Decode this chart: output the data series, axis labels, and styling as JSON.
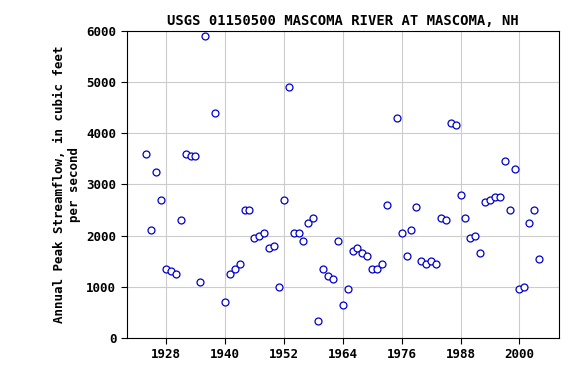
{
  "title": "USGS 01150500 MASCOMA RIVER AT MASCOMA, NH",
  "ylabel_line1": "Annual Peak Streamflow, in cubic feet",
  "ylabel_line2": "per second",
  "data": [
    [
      1924,
      3600
    ],
    [
      1925,
      2100
    ],
    [
      1926,
      3250
    ],
    [
      1927,
      2700
    ],
    [
      1928,
      1350
    ],
    [
      1929,
      1300
    ],
    [
      1930,
      1250
    ],
    [
      1931,
      2300
    ],
    [
      1932,
      3600
    ],
    [
      1933,
      3550
    ],
    [
      1934,
      3550
    ],
    [
      1935,
      1100
    ],
    [
      1936,
      5900
    ],
    [
      1938,
      4400
    ],
    [
      1940,
      700
    ],
    [
      1941,
      1250
    ],
    [
      1942,
      1350
    ],
    [
      1943,
      1450
    ],
    [
      1944,
      2500
    ],
    [
      1945,
      2500
    ],
    [
      1946,
      1950
    ],
    [
      1947,
      2000
    ],
    [
      1948,
      2050
    ],
    [
      1949,
      1750
    ],
    [
      1950,
      1800
    ],
    [
      1951,
      1000
    ],
    [
      1952,
      2700
    ],
    [
      1953,
      4900
    ],
    [
      1954,
      2050
    ],
    [
      1955,
      2050
    ],
    [
      1956,
      1900
    ],
    [
      1957,
      2250
    ],
    [
      1958,
      2350
    ],
    [
      1959,
      330
    ],
    [
      1960,
      1350
    ],
    [
      1961,
      1200
    ],
    [
      1962,
      1150
    ],
    [
      1963,
      1900
    ],
    [
      1964,
      650
    ],
    [
      1965,
      960
    ],
    [
      1966,
      1700
    ],
    [
      1967,
      1750
    ],
    [
      1968,
      1650
    ],
    [
      1969,
      1600
    ],
    [
      1970,
      1350
    ],
    [
      1971,
      1350
    ],
    [
      1972,
      1450
    ],
    [
      1973,
      2600
    ],
    [
      1975,
      4300
    ],
    [
      1976,
      2050
    ],
    [
      1977,
      1600
    ],
    [
      1978,
      2100
    ],
    [
      1979,
      2550
    ],
    [
      1980,
      1500
    ],
    [
      1981,
      1450
    ],
    [
      1982,
      1500
    ],
    [
      1983,
      1450
    ],
    [
      1984,
      2350
    ],
    [
      1985,
      2300
    ],
    [
      1986,
      4200
    ],
    [
      1987,
      4150
    ],
    [
      1988,
      2800
    ],
    [
      1989,
      2350
    ],
    [
      1990,
      1950
    ],
    [
      1991,
      2000
    ],
    [
      1992,
      1650
    ],
    [
      1993,
      2650
    ],
    [
      1994,
      2700
    ],
    [
      1995,
      2750
    ],
    [
      1996,
      2750
    ],
    [
      1997,
      3450
    ],
    [
      1998,
      2500
    ],
    [
      1999,
      3300
    ],
    [
      2000,
      950
    ],
    [
      2001,
      1000
    ],
    [
      2002,
      2250
    ],
    [
      2003,
      2500
    ],
    [
      2004,
      1550
    ]
  ],
  "marker_color": "#0000cc",
  "marker_facecolor": "white",
  "marker_size": 5,
  "xlim": [
    1920,
    2008
  ],
  "ylim": [
    0,
    6000
  ],
  "xticks": [
    1928,
    1940,
    1952,
    1964,
    1976,
    1988,
    2000
  ],
  "yticks": [
    0,
    1000,
    2000,
    3000,
    4000,
    5000,
    6000
  ],
  "grid_color": "#cccccc",
  "title_fontsize": 10,
  "ylabel_fontsize": 9,
  "tick_fontsize": 9,
  "font_family": "monospace"
}
